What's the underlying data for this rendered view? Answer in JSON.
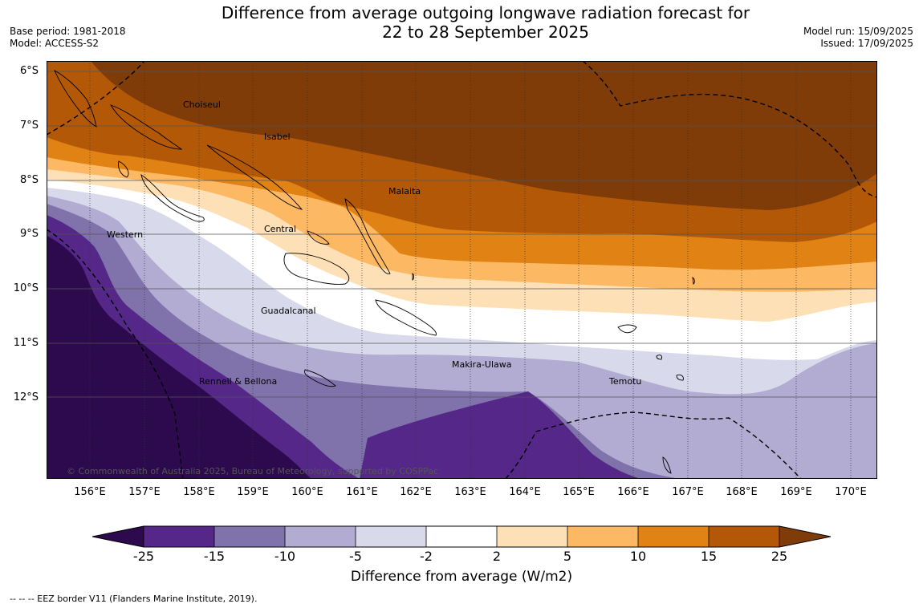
{
  "title_line1": "Difference from average outgoing longwave radiation forecast for",
  "title_line2": "22 to 28 September 2025",
  "meta_left": {
    "base_period": "Base period: 1981-2018",
    "model": "Model: ACCESS-S2"
  },
  "meta_right": {
    "model_run": "Model run: 15/09/2025",
    "issued": "Issued: 17/09/2025"
  },
  "lat_labels": [
    "6°S",
    "7°S",
    "8°S",
    "9°S",
    "10°S",
    "11°S",
    "12°S"
  ],
  "lon_labels": [
    "156°E",
    "157°E",
    "158°E",
    "159°E",
    "160°E",
    "161°E",
    "162°E",
    "163°E",
    "164°E",
    "165°E",
    "166°E",
    "167°E",
    "168°E",
    "169°E",
    "170°E"
  ],
  "places": {
    "choiseul": "Choiseul",
    "isabel": "Isabel",
    "malaita": "Malaita",
    "western": "Western",
    "central": "Central",
    "guadalcanal": "Guadalcanal",
    "makira": "Makira-Ulawa",
    "temotu": "Temotu",
    "rennell": "Rennell & Bellona"
  },
  "copyright": "© Commonwealth of Australia 2025, Bureau of Meteorology, supported by COSPPac",
  "colorbar": {
    "ticks": [
      "-25",
      "-15",
      "-10",
      "-5",
      "-2",
      "2",
      "5",
      "10",
      "15",
      "25"
    ],
    "colors": [
      "#2d0a4e",
      "#542788",
      "#8073ac",
      "#b2abd2",
      "#d8daeb",
      "#ffffff",
      "#fee0b6",
      "#fdb863",
      "#e08214",
      "#b35806",
      "#7f3b08"
    ],
    "label": "Difference from average (W/m2)"
  },
  "footnote": "--  --  -- EEZ border V11 (Flanders Marine Institute, 2019)."
}
